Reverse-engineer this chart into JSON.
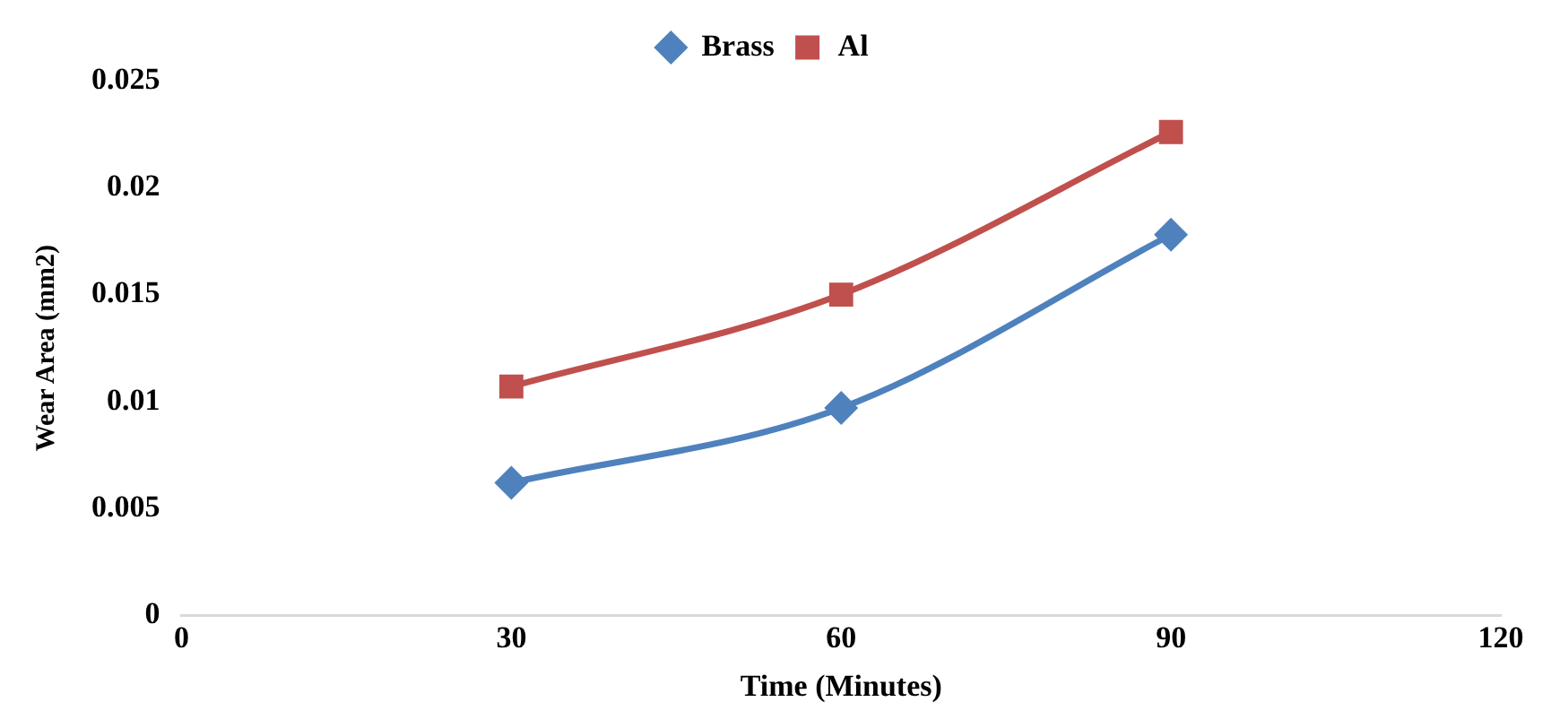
{
  "chart_data": {
    "type": "line",
    "xlabel": "Time (Minutes)",
    "ylabel": "Wear Area (mm2)",
    "x": [
      30,
      60,
      90
    ],
    "series": [
      {
        "name": "Brass",
        "color": "#4f81bd",
        "marker": "diamond",
        "values": [
          0.0062,
          0.0097,
          0.0178
        ]
      },
      {
        "name": "Al",
        "color": "#c0504d",
        "marker": "square",
        "values": [
          0.0107,
          0.015,
          0.0226
        ]
      }
    ],
    "xlim": [
      0,
      120
    ],
    "xticks": [
      0,
      30,
      60,
      90,
      120
    ],
    "ylim": [
      0,
      0.025
    ],
    "yticks": [
      0,
      0.005,
      0.01,
      0.015,
      0.02,
      0.025
    ],
    "grid": false,
    "legend": "top"
  }
}
